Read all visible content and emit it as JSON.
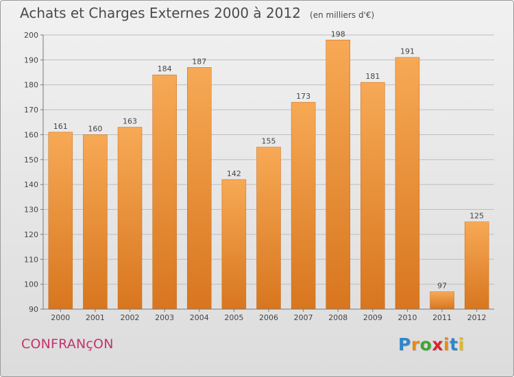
{
  "title": "Achats et Charges Externes 2000 à 2012",
  "unit": "(en milliers d'€)",
  "commune": "CONFRANçON",
  "brand": {
    "letters": [
      "P",
      "r",
      "o",
      "x",
      "i",
      "t",
      "i"
    ],
    "colors": [
      "#2d86c9",
      "#e58a1a",
      "#3fa535",
      "#d8262c",
      "#e58a1a",
      "#2d86c9",
      "#e5b81a"
    ]
  },
  "colors": {
    "bar_top": "#f7a955",
    "bar_bottom": "#d8761f",
    "grid": "#bdbdbd",
    "text": "#444444",
    "commune": "#c4336c"
  },
  "chart_data": {
    "type": "bar",
    "categories": [
      "2000",
      "2001",
      "2002",
      "2003",
      "2004",
      "2005",
      "2006",
      "2007",
      "2008",
      "2009",
      "2010",
      "2011",
      "2012"
    ],
    "values": [
      161,
      160,
      163,
      184,
      187,
      142,
      155,
      173,
      198,
      181,
      191,
      97,
      125
    ],
    "title": "Achats et Charges Externes 2000 à 2012",
    "xlabel": "",
    "ylabel": "",
    "ylim": [
      90,
      200
    ],
    "yticks": [
      90,
      100,
      110,
      120,
      130,
      140,
      150,
      160,
      170,
      180,
      190,
      200
    ],
    "grid": true,
    "data_labels": true
  }
}
